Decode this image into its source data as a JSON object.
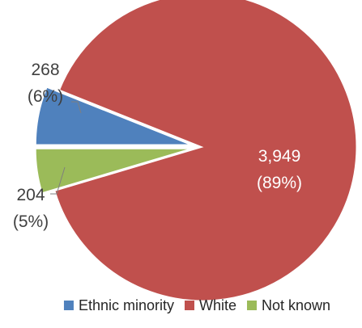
{
  "chart_data": {
    "type": "pie",
    "title": "",
    "slices": [
      {
        "name": "Ethnic minority",
        "value": 268,
        "value_label": "268",
        "percent_label": "(6%)",
        "color": "#4f81bd",
        "exploded": true
      },
      {
        "name": "White",
        "value": 3949,
        "value_label": "3,949",
        "percent_label": "(89%)",
        "color": "#c0504d",
        "exploded": false
      },
      {
        "name": "Not known",
        "value": 204,
        "value_label": "204",
        "percent_label": "(5%)",
        "color": "#9bbb59",
        "exploded": true
      }
    ],
    "start_angle_deg": -90,
    "direction": "counterclockwise",
    "legend": {
      "placement": "bottom"
    }
  }
}
